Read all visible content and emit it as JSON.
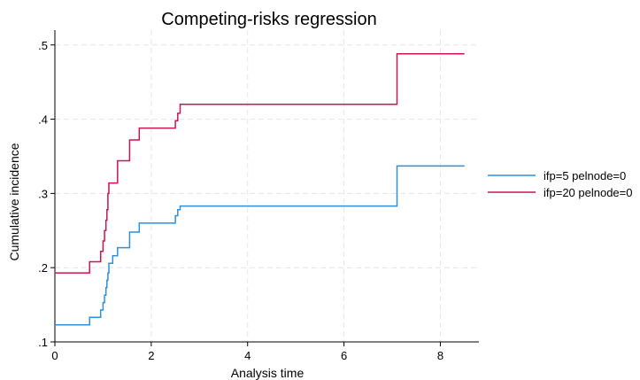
{
  "chart_data": {
    "type": "line",
    "title": "Competing-risks regression",
    "xlabel": "Analysis time",
    "ylabel": "Cumulative incidence",
    "xlim": [
      0,
      8.8
    ],
    "ylim": [
      0.1,
      0.52
    ],
    "xticks": [
      0,
      2,
      4,
      6,
      8
    ],
    "xtick_labels": [
      "0",
      "2",
      "4",
      "6",
      "8"
    ],
    "yticks": [
      0.1,
      0.2,
      0.3,
      0.4,
      0.5
    ],
    "ytick_labels": [
      ".1",
      ".2",
      ".3",
      ".4",
      ".5"
    ],
    "grid": true,
    "legend": "right",
    "step": true,
    "series": [
      {
        "name": "ifp=5 pelnode=0",
        "color": "#2f8fd8",
        "x": [
          0,
          0.72,
          0.95,
          1.0,
          1.03,
          1.06,
          1.08,
          1.1,
          1.12,
          1.15,
          1.2,
          1.3,
          1.4,
          1.55,
          1.7,
          1.75,
          2.5,
          2.55,
          2.6,
          7.1,
          8.5
        ],
        "y": [
          0.123,
          0.133,
          0.143,
          0.153,
          0.163,
          0.173,
          0.183,
          0.193,
          0.206,
          0.206,
          0.216,
          0.227,
          0.227,
          0.248,
          0.248,
          0.26,
          0.27,
          0.278,
          0.283,
          0.337,
          0.337
        ]
      },
      {
        "name": "ifp=20 pelnode=0",
        "color": "#c6174f",
        "x": [
          0,
          0.72,
          0.95,
          1.0,
          1.03,
          1.06,
          1.08,
          1.1,
          1.12,
          1.15,
          1.2,
          1.3,
          1.4,
          1.55,
          1.7,
          1.75,
          2.5,
          2.55,
          2.6,
          7.1,
          8.5
        ],
        "y": [
          0.193,
          0.208,
          0.222,
          0.236,
          0.25,
          0.264,
          0.278,
          0.3,
          0.314,
          0.314,
          0.314,
          0.344,
          0.344,
          0.372,
          0.372,
          0.388,
          0.398,
          0.408,
          0.42,
          0.488,
          0.488
        ]
      }
    ]
  }
}
